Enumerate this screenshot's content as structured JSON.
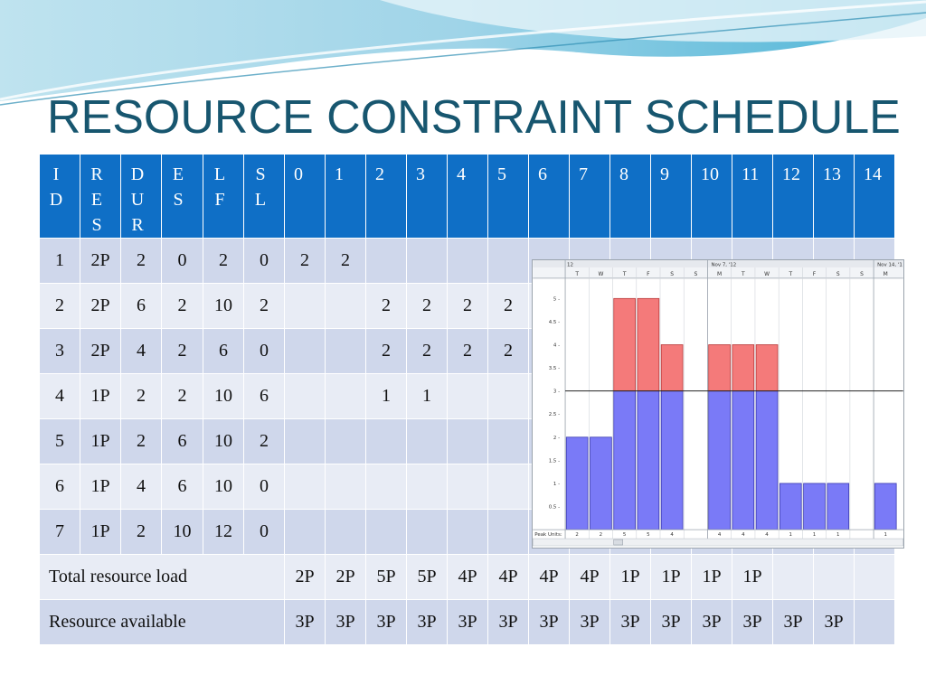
{
  "title": "RESOURCE CONSTRAINT SCHEDULE",
  "header": {
    "cols": [
      "ID",
      "RES",
      "DUR",
      "ES",
      "LF",
      "SL"
    ],
    "days": [
      "0",
      "1",
      "2",
      "3",
      "4",
      "5",
      "6",
      "7",
      "8",
      "9",
      "10",
      "11",
      "12",
      "13",
      "14"
    ]
  },
  "rows": [
    {
      "id": "1",
      "res": "2P",
      "dur": "2",
      "es": "0",
      "lf": "2",
      "sl": "0",
      "days": [
        "2",
        "2",
        "",
        "",
        "",
        "",
        "",
        "",
        "",
        "",
        "",
        "",
        "",
        "",
        ""
      ]
    },
    {
      "id": "2",
      "res": "2P",
      "dur": "6",
      "es": "2",
      "lf": "10",
      "sl": "2",
      "days": [
        "",
        "",
        "2",
        "2",
        "2",
        "2",
        "",
        "",
        "",
        "",
        "",
        "",
        "",
        "",
        ""
      ]
    },
    {
      "id": "3",
      "res": "2P",
      "dur": "4",
      "es": "2",
      "lf": "6",
      "sl": "0",
      "days": [
        "",
        "",
        "2",
        "2",
        "2",
        "2",
        "",
        "",
        "",
        "",
        "",
        "",
        "",
        "",
        ""
      ]
    },
    {
      "id": "4",
      "res": "1P",
      "dur": "2",
      "es": "2",
      "lf": "10",
      "sl": "6",
      "days": [
        "",
        "",
        "1",
        "1",
        "",
        "",
        "",
        "",
        "",
        "",
        "",
        "",
        "",
        "",
        ""
      ]
    },
    {
      "id": "5",
      "res": "1P",
      "dur": "2",
      "es": "6",
      "lf": "10",
      "sl": "2",
      "days": [
        "",
        "",
        "",
        "",
        "",
        "",
        "",
        "",
        "",
        "",
        "",
        "",
        "",
        "",
        ""
      ]
    },
    {
      "id": "6",
      "res": "1P",
      "dur": "4",
      "es": "6",
      "lf": "10",
      "sl": "0",
      "days": [
        "",
        "",
        "",
        "",
        "",
        "",
        "",
        "",
        "",
        "",
        "",
        "",
        "",
        "",
        ""
      ]
    },
    {
      "id": "7",
      "res": "1P",
      "dur": "2",
      "es": "10",
      "lf": "12",
      "sl": "0",
      "days": [
        "",
        "",
        "",
        "",
        "",
        "",
        "",
        "",
        "",
        "",
        "",
        "",
        "",
        "",
        ""
      ]
    }
  ],
  "total_load": {
    "label": "Total resource load",
    "values": [
      "2P",
      "2P",
      "5P",
      "5P",
      "4P",
      "4P",
      "4P",
      "4P",
      "1P",
      "1P",
      "1P",
      "1P",
      "",
      "",
      ""
    ]
  },
  "available": {
    "label": "Resource available",
    "values": [
      "3P",
      "3P",
      "3P",
      "3P",
      "3P",
      "3P",
      "3P",
      "3P",
      "3P",
      "3P",
      "3P",
      "3P",
      "3P",
      "3P",
      ""
    ]
  },
  "chart_data": {
    "type": "bar",
    "week_labels": [
      "12",
      "Nov 7, '12",
      "Nov 14, '1"
    ],
    "day_labels": [
      "T",
      "W",
      "T",
      "F",
      "S",
      "S",
      "M",
      "T",
      "W",
      "T",
      "F",
      "S",
      "S",
      "M"
    ],
    "y_ticks": [
      "5",
      "4.5",
      "4",
      "3.5",
      "3",
      "2.5",
      "2",
      "1.5",
      "1",
      "0.5"
    ],
    "ylim": [
      0,
      5.4
    ],
    "limit": 3,
    "values": [
      2,
      2,
      5,
      5,
      4,
      0,
      4,
      4,
      4,
      1,
      1,
      1,
      0,
      1
    ],
    "peak_label": "Peak Units:",
    "peak_values": [
      "2",
      "2",
      "5",
      "5",
      "4",
      "",
      "4",
      "4",
      "4",
      "1",
      "1",
      "1",
      "",
      "1"
    ],
    "colors": {
      "normal": "#7a7af7",
      "over": "#f47a7a"
    }
  }
}
